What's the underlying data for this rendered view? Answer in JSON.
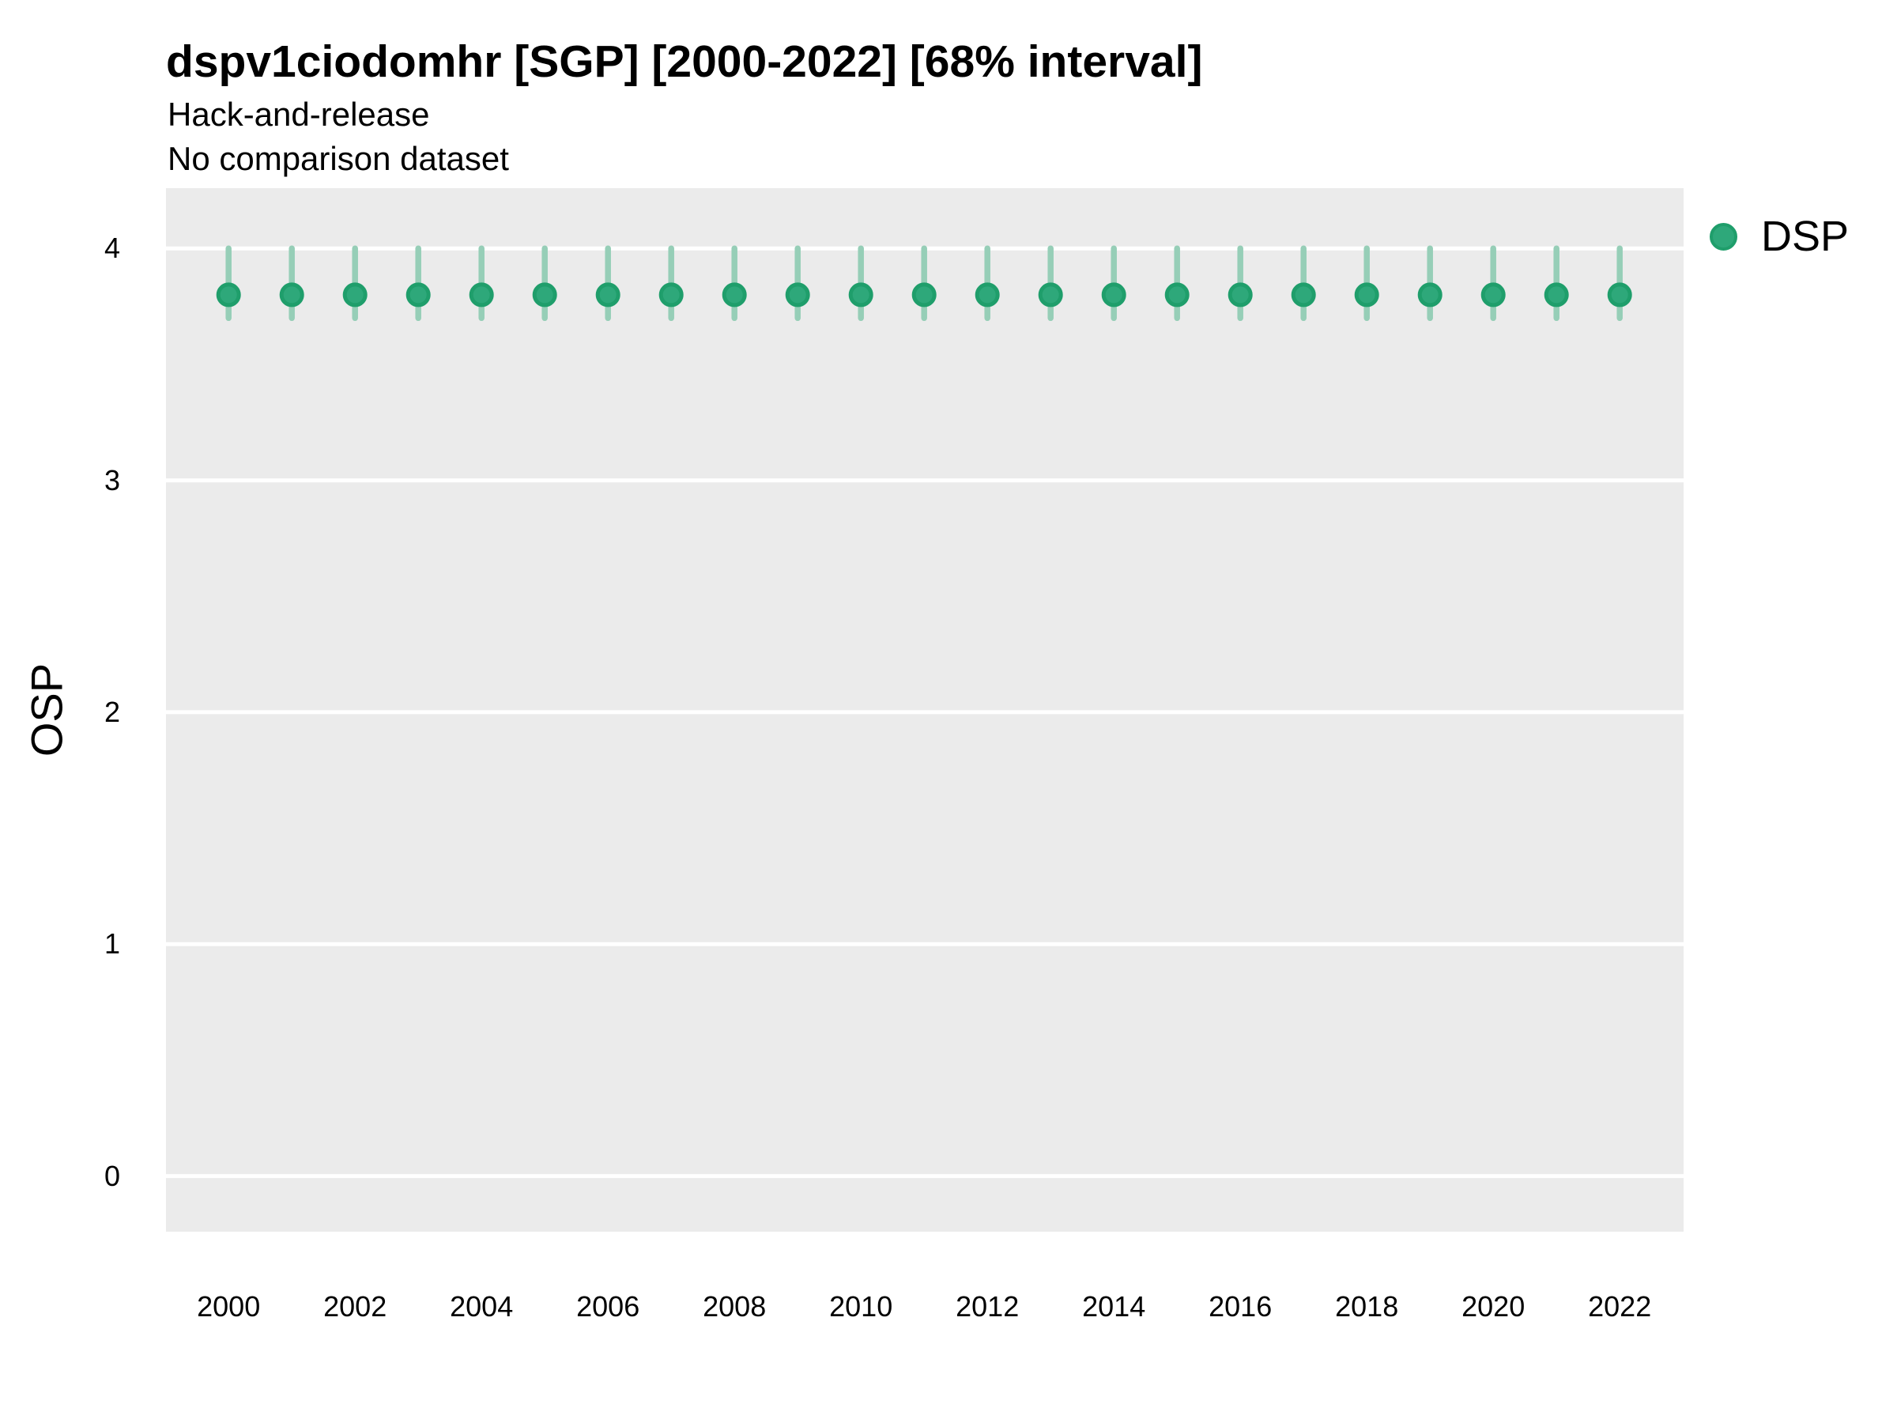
{
  "header": {
    "title": "dspv1ciodomhr [SGP] [2000-2022] [68% interval]",
    "subtitle1": "Hack-and-release",
    "subtitle2": "No comparison dataset"
  },
  "axes": {
    "y_label": "OSP",
    "y_tick_labels": [
      "4",
      "3",
      "2",
      "1",
      "0"
    ],
    "x_tick_labels": [
      "2000",
      "2002",
      "2004",
      "2006",
      "2008",
      "2010",
      "2012",
      "2014",
      "2016",
      "2018",
      "2020",
      "2022"
    ]
  },
  "legend": {
    "items": [
      {
        "label": "DSP",
        "color": "#2EA87A",
        "ring_color": "#1F9E6B"
      }
    ]
  },
  "colors": {
    "panel_background": "#EBEBEB",
    "gridline": "#FFFFFF",
    "point_fill": "#2EA87A",
    "point_ring": "#1F9E6B",
    "interval_bar": "#96CEB7",
    "text": "#000000"
  },
  "chart_data": {
    "type": "scatter",
    "subtype": "pointrange",
    "title": "dspv1ciodomhr [SGP] [2000-2022] [68% interval]",
    "subtitle": "Hack-and-release",
    "subtitle2": "No comparison dataset",
    "xlabel": "",
    "ylabel": "OSP",
    "interval_note": "68% interval",
    "grid": "horizontal major gridlines only, white on grey panel",
    "legend_position": "right",
    "xlim": [
      1999.01,
      2023.01
    ],
    "ylim": [
      -0.24,
      4.26
    ],
    "xticks": [
      2000,
      2002,
      2004,
      2006,
      2008,
      2010,
      2012,
      2014,
      2016,
      2018,
      2020,
      2022
    ],
    "yticks": [
      0,
      1,
      2,
      3,
      4
    ],
    "series": [
      {
        "name": "DSP",
        "color": "#2EA87A",
        "ring_color": "#1F9E6B",
        "interval_color": "#96CEB7",
        "x": [
          2000,
          2001,
          2002,
          2003,
          2004,
          2005,
          2006,
          2007,
          2008,
          2009,
          2010,
          2011,
          2012,
          2013,
          2014,
          2015,
          2016,
          2017,
          2018,
          2019,
          2020,
          2021,
          2022
        ],
        "y": [
          3.8,
          3.8,
          3.8,
          3.8,
          3.8,
          3.8,
          3.8,
          3.8,
          3.8,
          3.8,
          3.8,
          3.8,
          3.8,
          3.8,
          3.8,
          3.8,
          3.8,
          3.8,
          3.8,
          3.8,
          3.8,
          3.8,
          3.8
        ],
        "y_lo": [
          3.7,
          3.7,
          3.7,
          3.7,
          3.7,
          3.7,
          3.7,
          3.7,
          3.7,
          3.7,
          3.7,
          3.7,
          3.7,
          3.7,
          3.7,
          3.7,
          3.7,
          3.7,
          3.7,
          3.7,
          3.7,
          3.7,
          3.7
        ],
        "y_hi": [
          4.0,
          4.0,
          4.0,
          4.0,
          4.0,
          4.0,
          4.0,
          4.0,
          4.0,
          4.0,
          4.0,
          4.0,
          4.0,
          4.0,
          4.0,
          4.0,
          4.0,
          4.0,
          4.0,
          4.0,
          4.0,
          4.0,
          4.0
        ]
      }
    ]
  }
}
